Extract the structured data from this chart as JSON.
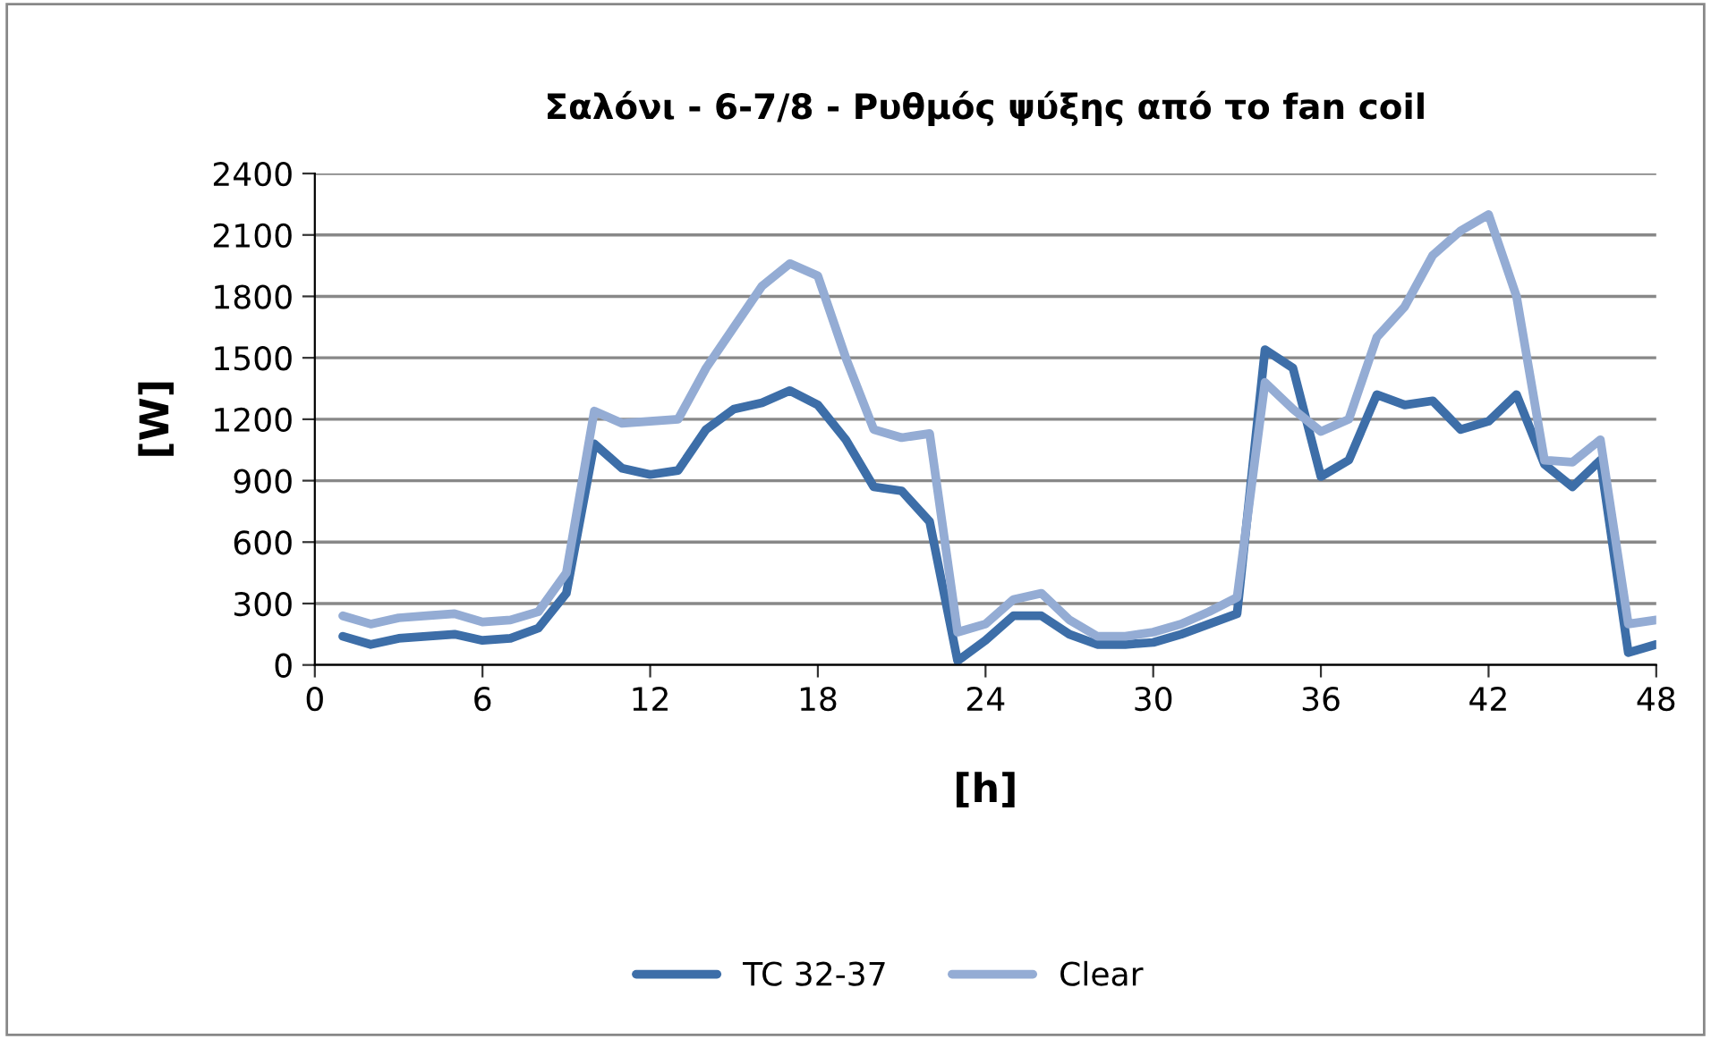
{
  "chart_data": {
    "type": "line",
    "title": "Σαλόνι - 6-7/8 - Ρυθμός ψύξης από το fan coil",
    "xlabel": "[h]",
    "ylabel": "[W]",
    "x": [
      1,
      2,
      3,
      4,
      5,
      6,
      7,
      8,
      9,
      10,
      11,
      12,
      13,
      14,
      15,
      16,
      17,
      18,
      19,
      20,
      21,
      22,
      23,
      24,
      25,
      26,
      27,
      28,
      29,
      30,
      31,
      32,
      33,
      34,
      35,
      36,
      37,
      38,
      39,
      40,
      41,
      42,
      43,
      44,
      45,
      46,
      47,
      48
    ],
    "series": [
      {
        "name": "TC 32-37",
        "color": "#3d6ea8",
        "values": [
          140,
          100,
          130,
          140,
          150,
          120,
          130,
          180,
          350,
          1080,
          960,
          930,
          950,
          1150,
          1250,
          1280,
          1340,
          1270,
          1100,
          870,
          850,
          700,
          20,
          120,
          240,
          240,
          150,
          100,
          100,
          110,
          150,
          200,
          250,
          1540,
          1450,
          920,
          1000,
          1320,
          1270,
          1290,
          1150,
          1190,
          1320,
          980,
          870,
          1000,
          60,
          100
        ]
      },
      {
        "name": "Clear",
        "color": "#94acd4",
        "values": [
          240,
          200,
          230,
          240,
          250,
          210,
          220,
          260,
          450,
          1240,
          1180,
          1190,
          1200,
          1450,
          1650,
          1850,
          1960,
          1900,
          1500,
          1150,
          1110,
          1130,
          160,
          200,
          320,
          350,
          220,
          140,
          140,
          160,
          200,
          260,
          330,
          1380,
          1250,
          1140,
          1200,
          1600,
          1750,
          2000,
          2120,
          2200,
          1800,
          1000,
          990,
          1100,
          200,
          220
        ]
      }
    ],
    "xlim": [
      0,
      48
    ],
    "xticks": [
      0,
      6,
      12,
      18,
      24,
      30,
      36,
      42,
      48
    ],
    "ylim": [
      0,
      2400
    ],
    "yticks": [
      0,
      300,
      600,
      900,
      1200,
      1500,
      1800,
      2100,
      2400
    ],
    "grid": "y",
    "legend": "bottom",
    "marker": "none",
    "line_style": "solid"
  }
}
